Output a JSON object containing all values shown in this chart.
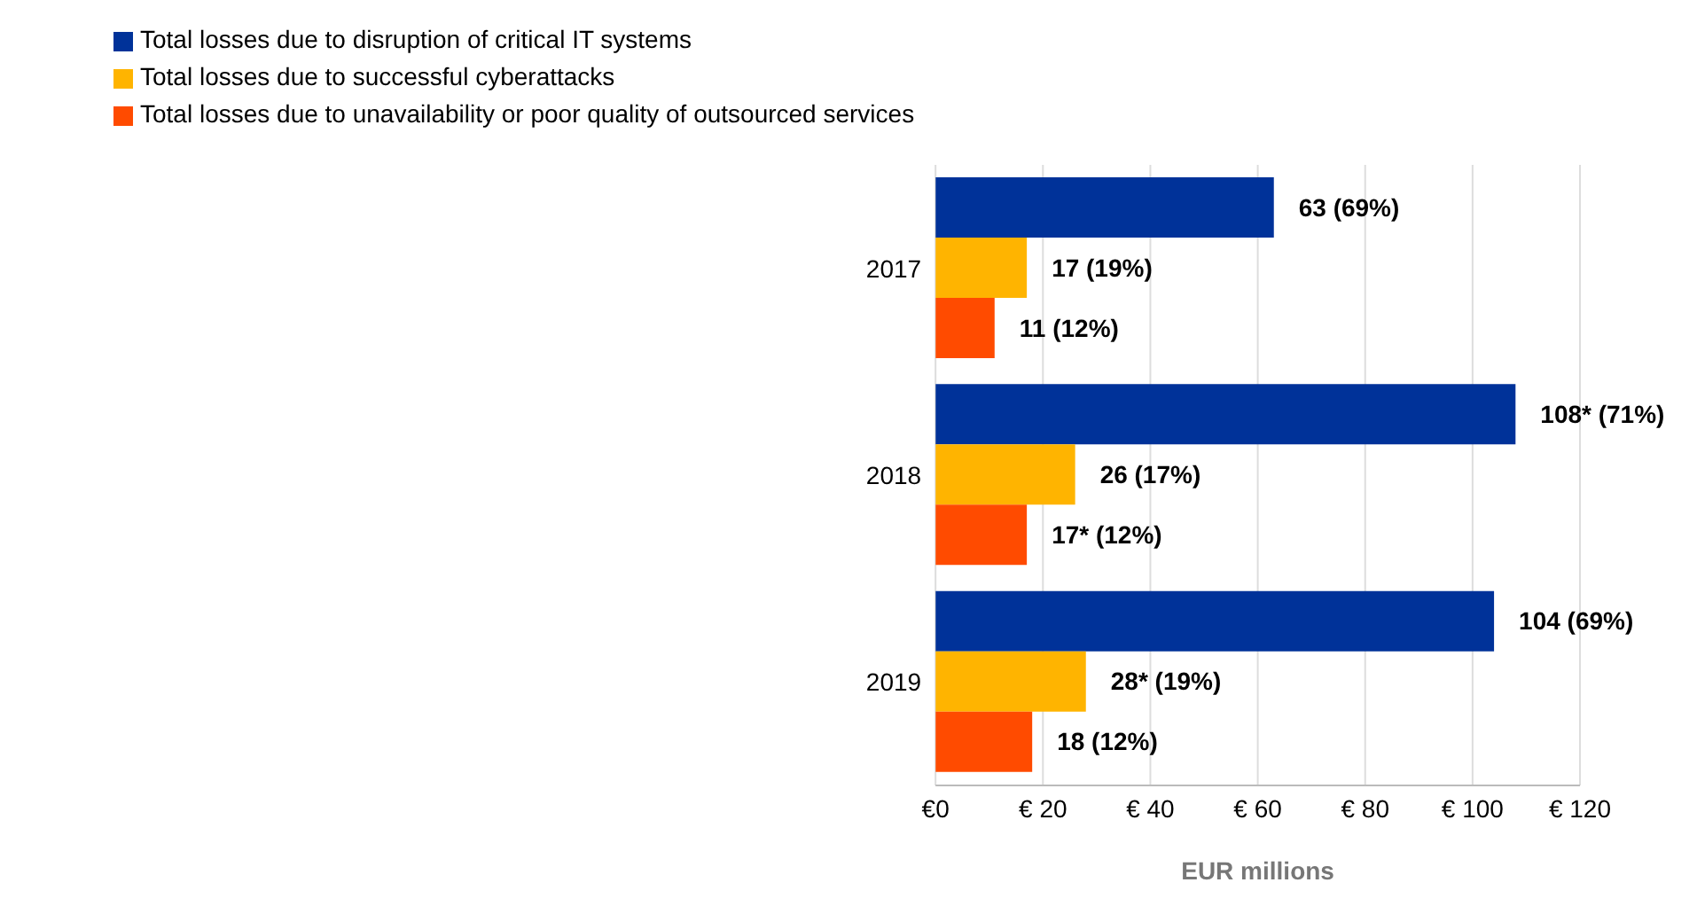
{
  "chart_data": {
    "type": "bar",
    "orientation": "horizontal",
    "categories": [
      "2017",
      "2018",
      "2019"
    ],
    "series": [
      {
        "name": "Total losses due to disruption of critical IT systems",
        "color": "#003299",
        "values": [
          63,
          108,
          104
        ],
        "value_labels": [
          "63 (69%)",
          "108* (71%)",
          "104 (69%)"
        ]
      },
      {
        "name": "Total losses due to successful cyberattacks",
        "color": "#ffb400",
        "values": [
          17,
          26,
          28
        ],
        "value_labels": [
          "17 (19%)",
          "26 (17%)",
          "28* (19%)"
        ]
      },
      {
        "name": "Total losses due to unavailability or poor quality of outsourced services",
        "color": "#ff4b00",
        "values": [
          11,
          17,
          18
        ],
        "value_labels": [
          "11 (12%)",
          "17* (12%)",
          "18 (12%)"
        ]
      }
    ],
    "xlabel": "EUR millions",
    "xlim": [
      0,
      120
    ],
    "xticks": [
      {
        "value": 0,
        "label": "€0"
      },
      {
        "value": 20,
        "label": "€ 20"
      },
      {
        "value": 40,
        "label": "€ 40"
      },
      {
        "value": 60,
        "label": "€ 60"
      },
      {
        "value": 80,
        "label": "€ 80"
      },
      {
        "value": 100,
        "label": "€ 100"
      },
      {
        "value": 120,
        "label": "€ 120"
      }
    ],
    "grid": "x",
    "legend": "top left"
  }
}
